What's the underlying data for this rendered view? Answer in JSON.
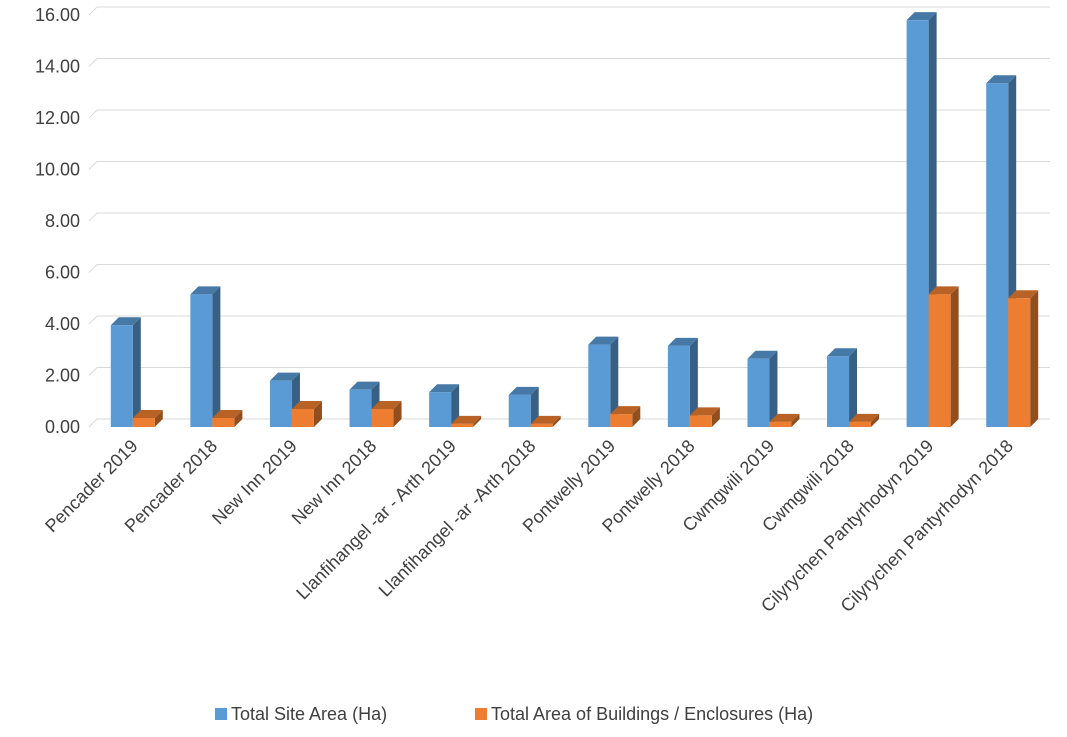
{
  "chart_data": {
    "type": "bar",
    "title": "",
    "xlabel": "",
    "ylabel": "",
    "ylim": [
      0,
      16
    ],
    "yticks": [
      "0.00",
      "2.00",
      "4.00",
      "6.00",
      "8.00",
      "10.00",
      "12.00",
      "14.00",
      "16.00"
    ],
    "grid": true,
    "legend_position": "bottom",
    "categories": [
      "Pencader 2019",
      "Pencader 2018",
      "New Inn 2019",
      "New Inn 2018",
      "Llanfihangel -ar - Arth 2019",
      "Llanfihangel -ar -Arth 2018",
      "Pontwelly 2019",
      "Pontwelly 2018",
      "Cwmgwili 2019",
      "Cwmgwili 2018",
      "Cilyrychen  Pantyrhodyn  2019",
      "Cilyrychen  Pantyrhodyn 2018"
    ],
    "series": [
      {
        "name": "Total Site Area (Ha)",
        "color": "#5b9bd5",
        "values": [
          3.95,
          5.15,
          1.8,
          1.45,
          1.35,
          1.25,
          3.2,
          3.15,
          2.65,
          2.75,
          15.8,
          13.35
        ]
      },
      {
        "name": "Total Area of Buildings / Enclosures (Ha)",
        "color": "#ed7d31",
        "values": [
          0.35,
          0.35,
          0.7,
          0.7,
          0.12,
          0.12,
          0.5,
          0.45,
          0.2,
          0.2,
          5.15,
          5.0
        ]
      }
    ]
  }
}
